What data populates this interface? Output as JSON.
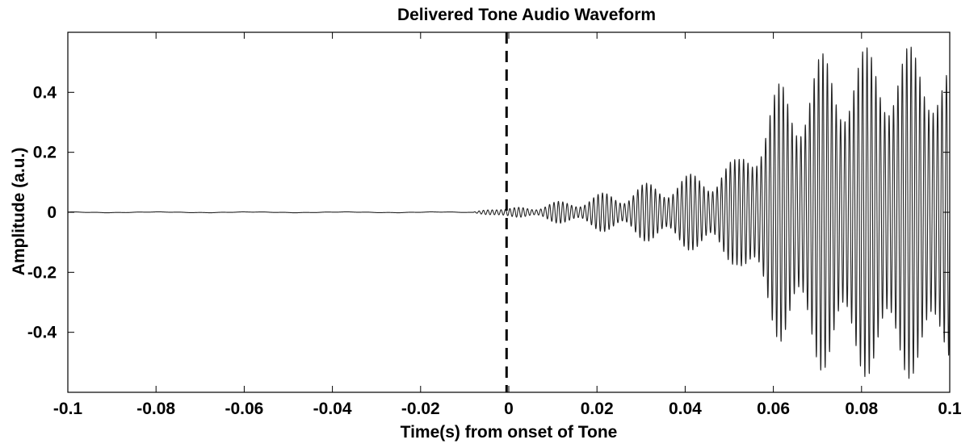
{
  "chart_data": {
    "type": "line",
    "title": "Delivered Tone Audio Waveform",
    "xlabel": "Time(s) from onset of Tone",
    "ylabel": "Amplitude (a.u.)",
    "xlim": [
      -0.1,
      0.1
    ],
    "ylim": [
      -0.6,
      0.6
    ],
    "x_ticks": [
      -0.1,
      -0.08,
      -0.06,
      -0.04,
      -0.02,
      0,
      0.02,
      0.04,
      0.06,
      0.08,
      0.1
    ],
    "x_tick_labels": [
      "-0.1",
      "-0.08",
      "-0.06",
      "-0.04",
      "-0.02",
      "0",
      "0.02",
      "0.04",
      "0.06",
      "0.08",
      "0.1"
    ],
    "y_ticks": [
      -0.4,
      -0.2,
      0,
      0.2,
      0.4
    ],
    "y_tick_labels": [
      "-0.4",
      "-0.2",
      "0",
      "0.2",
      "0.4"
    ],
    "grid": false,
    "legend": false,
    "line_color": "#222222",
    "annotations": [
      {
        "type": "vertical-dashed-line",
        "x": -0.0005,
        "color": "#000000"
      }
    ],
    "series": [
      {
        "signal": "tone",
        "carrier_frequency_hz": 1000,
        "beat_frequency_hz": 100,
        "onset_s": -0.008,
        "baseline_amplitude": 0.002,
        "envelope_peaks": [
          {
            "x": -0.008,
            "y": 0.0
          },
          {
            "x": -0.004,
            "y": 0.006
          },
          {
            "x": 0.0,
            "y": 0.012
          },
          {
            "x": 0.003,
            "y": 0.02
          },
          {
            "x": 0.013,
            "y": 0.04
          },
          {
            "x": 0.023,
            "y": 0.07
          },
          {
            "x": 0.032,
            "y": 0.1
          },
          {
            "x": 0.042,
            "y": 0.13
          },
          {
            "x": 0.052,
            "y": 0.18
          },
          {
            "x": 0.062,
            "y": 0.45
          },
          {
            "x": 0.071,
            "y": 0.53
          },
          {
            "x": 0.081,
            "y": 0.55
          },
          {
            "x": 0.09,
            "y": 0.56
          },
          {
            "x": 0.1,
            "y": 0.5
          }
        ],
        "envelope_troughs": [
          {
            "x": 0.008,
            "y": 0.008
          },
          {
            "x": 0.018,
            "y": 0.02
          },
          {
            "x": 0.027,
            "y": 0.03
          },
          {
            "x": 0.037,
            "y": 0.05
          },
          {
            "x": 0.047,
            "y": 0.07
          },
          {
            "x": 0.057,
            "y": 0.16
          },
          {
            "x": 0.066,
            "y": 0.25
          },
          {
            "x": 0.076,
            "y": 0.3
          },
          {
            "x": 0.085,
            "y": 0.32
          },
          {
            "x": 0.095,
            "y": 0.33
          }
        ]
      }
    ]
  }
}
